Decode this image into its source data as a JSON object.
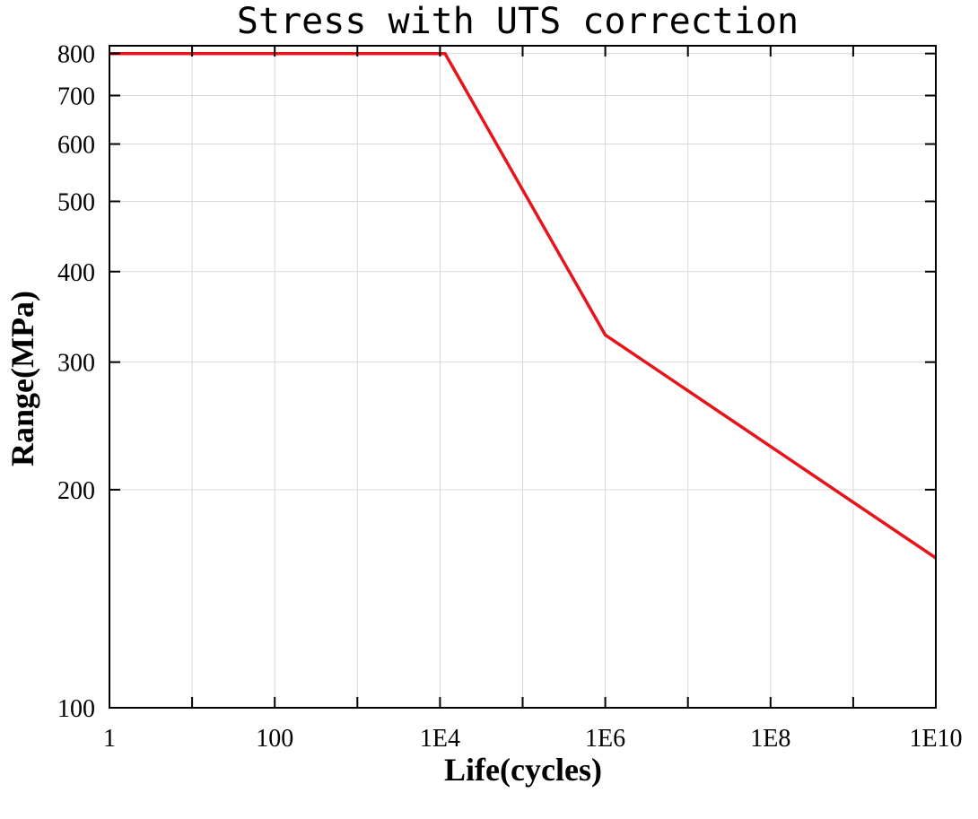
{
  "chart_data": {
    "type": "line",
    "title": "Stress with UTS correction",
    "xlabel": "Life(cycles)",
    "ylabel": "Range(MPa)",
    "x_scale": "log",
    "y_scale": "log",
    "xlim": [
      1,
      10000000000
    ],
    "ylim": [
      100,
      820
    ],
    "grid": true,
    "x_ticks": [
      {
        "value": 1,
        "label": "1"
      },
      {
        "value": 100,
        "label": "100"
      },
      {
        "value": 10000,
        "label": "1E4"
      },
      {
        "value": 1000000,
        "label": "1E6"
      },
      {
        "value": 100000000,
        "label": "1E8"
      },
      {
        "value": 10000000000,
        "label": "1E10"
      }
    ],
    "x_minor_ticks": [
      10,
      1000,
      100000,
      10000000,
      1000000000
    ],
    "y_ticks": [
      {
        "value": 100,
        "label": "100"
      },
      {
        "value": 200,
        "label": "200"
      },
      {
        "value": 300,
        "label": "300"
      },
      {
        "value": 400,
        "label": "400"
      },
      {
        "value": 500,
        "label": "500"
      },
      {
        "value": 600,
        "label": "600"
      },
      {
        "value": 700,
        "label": "700"
      },
      {
        "value": 800,
        "label": "800"
      }
    ],
    "series": [
      {
        "color": "#e8141b",
        "x": [
          1,
          11500,
          1000000,
          10000000000
        ],
        "y": [
          800,
          800,
          327,
          161
        ]
      }
    ]
  }
}
